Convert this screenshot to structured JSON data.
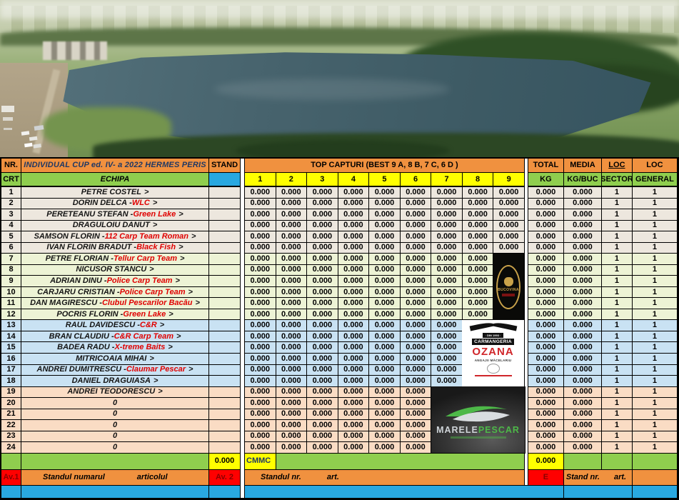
{
  "palette": {
    "orange": "#F0913F",
    "green": "#8FCE4E",
    "yellow": "#FFFF00",
    "blue": "#29A8E0",
    "red": "#FF0000",
    "group_a": "#EDE7DE",
    "group_b": "#EDF3D5",
    "group_c": "#C9E2F3",
    "group_d": "#FADCC4",
    "title_text": "#1F3864",
    "team_text": "#E00000"
  },
  "header": {
    "nr": "NR.",
    "crt": "CRT",
    "title": "INDIVIDUAL  CUP ed. IV- a  2022 HERMES PERIS",
    "echipa": "ECHIPA",
    "stand": "STAND",
    "top_capturi": "TOP CAPTURI (BEST  9 A, 8 B, 7 C, 6 D )",
    "capture_cols": [
      "1",
      "2",
      "3",
      "4",
      "5",
      "6",
      "7",
      "8",
      "9"
    ],
    "total": "TOTAL",
    "kg": "KG",
    "media": "MEDIA",
    "kg_buc": "KG/BUC",
    "loc1": "LOC",
    "sector": "SECTOR",
    "loc2": "LOC",
    "general": "GENERAL"
  },
  "rows": [
    {
      "nr": "1",
      "name": "PETRE COSTEL",
      "team": "",
      "tail": ">",
      "group": "a",
      "captures": [
        "0.000",
        "0.000",
        "0.000",
        "0.000",
        "0.000",
        "0.000",
        "0.000",
        "0.000",
        "0.000"
      ],
      "total": "0.000",
      "media": "0.000",
      "sector": "1",
      "general": "1"
    },
    {
      "nr": "2",
      "name": "DORIN DELCA",
      "team": "WLC",
      "tail": ">",
      "group": "a",
      "captures": [
        "0.000",
        "0.000",
        "0.000",
        "0.000",
        "0.000",
        "0.000",
        "0.000",
        "0.000",
        "0.000"
      ],
      "total": "0.000",
      "media": "0.000",
      "sector": "1",
      "general": "1"
    },
    {
      "nr": "3",
      "name": "PERETEANU STEFAN",
      "team": "Green Lake",
      "tail": ">",
      "group": "a",
      "captures": [
        "0.000",
        "0.000",
        "0.000",
        "0.000",
        "0.000",
        "0.000",
        "0.000",
        "0.000",
        "0.000"
      ],
      "total": "0.000",
      "media": "0.000",
      "sector": "1",
      "general": "1"
    },
    {
      "nr": "4",
      "name": "DRAGULOIU DANUT",
      "team": "",
      "tail": ">",
      "group": "a",
      "captures": [
        "0.000",
        "0.000",
        "0.000",
        "0.000",
        "0.000",
        "0.000",
        "0.000",
        "0.000",
        "0.000"
      ],
      "total": "0.000",
      "media": "0.000",
      "sector": "1",
      "general": "1"
    },
    {
      "nr": "5",
      "name": "SAMSON FLORIN",
      "team": "112 Carp Team Roman",
      "tail": ">",
      "group": "a",
      "captures": [
        "0.000",
        "0.000",
        "0.000",
        "0.000",
        "0.000",
        "0.000",
        "0.000",
        "0.000",
        "0.000"
      ],
      "total": "0.000",
      "media": "0.000",
      "sector": "1",
      "general": "1"
    },
    {
      "nr": "6",
      "name": "IVAN FLORIN BRADUT",
      "team": "Black Fish",
      "tail": ">",
      "group": "a",
      "captures": [
        "0.000",
        "0.000",
        "0.000",
        "0.000",
        "0.000",
        "0.000",
        "0.000",
        "0.000",
        "0.000"
      ],
      "total": "0.000",
      "media": "0.000",
      "sector": "1",
      "general": "1"
    },
    {
      "nr": "7",
      "name": "PETRE  FLORIAN",
      "team": "Tellur Carp Team",
      "tail": ">",
      "group": "b",
      "captures": [
        "0.000",
        "0.000",
        "0.000",
        "0.000",
        "0.000",
        "0.000",
        "0.000",
        "0.000"
      ],
      "total": "0.000",
      "media": "0.000",
      "sector": "1",
      "general": "1"
    },
    {
      "nr": "8",
      "name": "NICUSOR  STANCU",
      "team": "",
      "tail": ">",
      "group": "b",
      "captures": [
        "0.000",
        "0.000",
        "0.000",
        "0.000",
        "0.000",
        "0.000",
        "0.000",
        "0.000"
      ],
      "total": "0.000",
      "media": "0.000",
      "sector": "1",
      "general": "1"
    },
    {
      "nr": "9",
      "name": "ADRIAN DINU",
      "team": "Police Carp Team",
      "tail": ">",
      "group": "b",
      "captures": [
        "0.000",
        "0.000",
        "0.000",
        "0.000",
        "0.000",
        "0.000",
        "0.000",
        "0.000"
      ],
      "total": "0.000",
      "media": "0.000",
      "sector": "1",
      "general": "1"
    },
    {
      "nr": "10",
      "name": "CARJARU CRISTIAN",
      "team": "Police Carp Team",
      "tail": ">",
      "group": "b",
      "captures": [
        "0.000",
        "0.000",
        "0.000",
        "0.000",
        "0.000",
        "0.000",
        "0.000",
        "0.000"
      ],
      "total": "0.000",
      "media": "0.000",
      "sector": "1",
      "general": "1"
    },
    {
      "nr": "11",
      "name": "DAN MAGIRESCU",
      "team": "Clubul Pescarilor Bacău",
      "tail": ">",
      "group": "b",
      "captures": [
        "0.000",
        "0.000",
        "0.000",
        "0.000",
        "0.000",
        "0.000",
        "0.000",
        "0.000"
      ],
      "total": "0.000",
      "media": "0.000",
      "sector": "1",
      "general": "1"
    },
    {
      "nr": "12",
      "name": "POCRIS FLORIN",
      "team": "Green Lake",
      "tail": ">",
      "group": "b",
      "captures": [
        "0.000",
        "0.000",
        "0.000",
        "0.000",
        "0.000",
        "0.000",
        "0.000",
        "0.000"
      ],
      "total": "0.000",
      "media": "0.000",
      "sector": "1",
      "general": "1"
    },
    {
      "nr": "13",
      "name": "RAUL DAVIDESCU",
      "team": "C&R",
      "tail": ">",
      "group": "c",
      "captures": [
        "0.000",
        "0.000",
        "0.000",
        "0.000",
        "0.000",
        "0.000",
        "0.000"
      ],
      "total": "0.000",
      "media": "0.000",
      "sector": "1",
      "general": "1"
    },
    {
      "nr": "14",
      "name": "BRAN CLAUDIU",
      "team": "C&R Carp Team",
      "tail": ">",
      "group": "c",
      "captures": [
        "0.000",
        "0.000",
        "0.000",
        "0.000",
        "0.000",
        "0.000",
        "0.000"
      ],
      "total": "0.000",
      "media": "0.000",
      "sector": "1",
      "general": "1"
    },
    {
      "nr": "15",
      "name": "BADEA RADU",
      "team": "X-treme Baits",
      "tail": ">",
      "group": "c",
      "captures": [
        "0.000",
        "0.000",
        "0.000",
        "0.000",
        "0.000",
        "0.000",
        "0.000"
      ],
      "total": "0.000",
      "media": "0.000",
      "sector": "1",
      "general": "1"
    },
    {
      "nr": "16",
      "name": "MITRICOAIA MIHAI",
      "team": "",
      "tail": ">",
      "group": "c",
      "captures": [
        "0.000",
        "0.000",
        "0.000",
        "0.000",
        "0.000",
        "0.000",
        "0.000"
      ],
      "total": "0.000",
      "media": "0.000",
      "sector": "1",
      "general": "1"
    },
    {
      "nr": "17",
      "name": "ANDREI DUMITRESCU",
      "team": "Claumar Pescar",
      "tail": ">",
      "group": "c",
      "captures": [
        "0.000",
        "0.000",
        "0.000",
        "0.000",
        "0.000",
        "0.000",
        "0.000"
      ],
      "total": "0.000",
      "media": "0.000",
      "sector": "1",
      "general": "1"
    },
    {
      "nr": "18",
      "name": "DANIEL DRAGUIASA",
      "team": "",
      "tail": ">",
      "group": "c",
      "captures": [
        "0.000",
        "0.000",
        "0.000",
        "0.000",
        "0.000",
        "0.000",
        "0.000"
      ],
      "total": "0.000",
      "media": "0.000",
      "sector": "1",
      "general": "1"
    },
    {
      "nr": "19",
      "name": "ANDREI TEODORESCU",
      "team": "",
      "tail": ">",
      "group": "d",
      "captures": [
        "0.000",
        "0.000",
        "0.000",
        "0.000",
        "0.000",
        "0.000"
      ],
      "total": "0.000",
      "media": "0.000",
      "sector": "1",
      "general": "1"
    },
    {
      "nr": "20",
      "name": "0",
      "team": "",
      "tail": "",
      "group": "d",
      "captures": [
        "0.000",
        "0.000",
        "0.000",
        "0.000",
        "0.000",
        "0.000"
      ],
      "total": "0.000",
      "media": "0.000",
      "sector": "1",
      "general": "1"
    },
    {
      "nr": "21",
      "name": "0",
      "team": "",
      "tail": "",
      "group": "d",
      "captures": [
        "0.000",
        "0.000",
        "0.000",
        "0.000",
        "0.000",
        "0.000"
      ],
      "total": "0.000",
      "media": "0.000",
      "sector": "1",
      "general": "1"
    },
    {
      "nr": "22",
      "name": "0",
      "team": "",
      "tail": "",
      "group": "d",
      "captures": [
        "0.000",
        "0.000",
        "0.000",
        "0.000",
        "0.000",
        "0.000"
      ],
      "total": "0.000",
      "media": "0.000",
      "sector": "1",
      "general": "1"
    },
    {
      "nr": "23",
      "name": "0",
      "team": "",
      "tail": "",
      "group": "d",
      "captures": [
        "0.000",
        "0.000",
        "0.000",
        "0.000",
        "0.000",
        "0.000"
      ],
      "total": "0.000",
      "media": "0.000",
      "sector": "1",
      "general": "1"
    },
    {
      "nr": "24",
      "name": "0",
      "team": "",
      "tail": "",
      "group": "d",
      "captures": [
        "0.000",
        "0.000",
        "0.000",
        "0.000",
        "0.000",
        "0.000"
      ],
      "total": "0.000",
      "media": "0.000",
      "sector": "1",
      "general": "1"
    }
  ],
  "sponsors": {
    "bucovina": {
      "name": "BUCOVINA"
    },
    "ozana": {
      "banner": "· DIN 1993 ·",
      "line1": "CARMANGERIA",
      "line2": "OZANA",
      "line3": "ANGAJII MĂCELARIU"
    },
    "marele_pescar": {
      "word1": "MARELE",
      "word2": "PESCAR"
    }
  },
  "footer": {
    "stand_total": "0.000",
    "cmmc": "CMMC",
    "total_kg": "0.000",
    "av1": "Av.1",
    "left_a": "Standul numarul",
    "left_b": "articolul",
    "av2": "Av. 2",
    "mid_a": "Standul  nr.",
    "mid_b": "art.",
    "e": "E",
    "right_a": "Stand nr.",
    "right_b": "art."
  }
}
